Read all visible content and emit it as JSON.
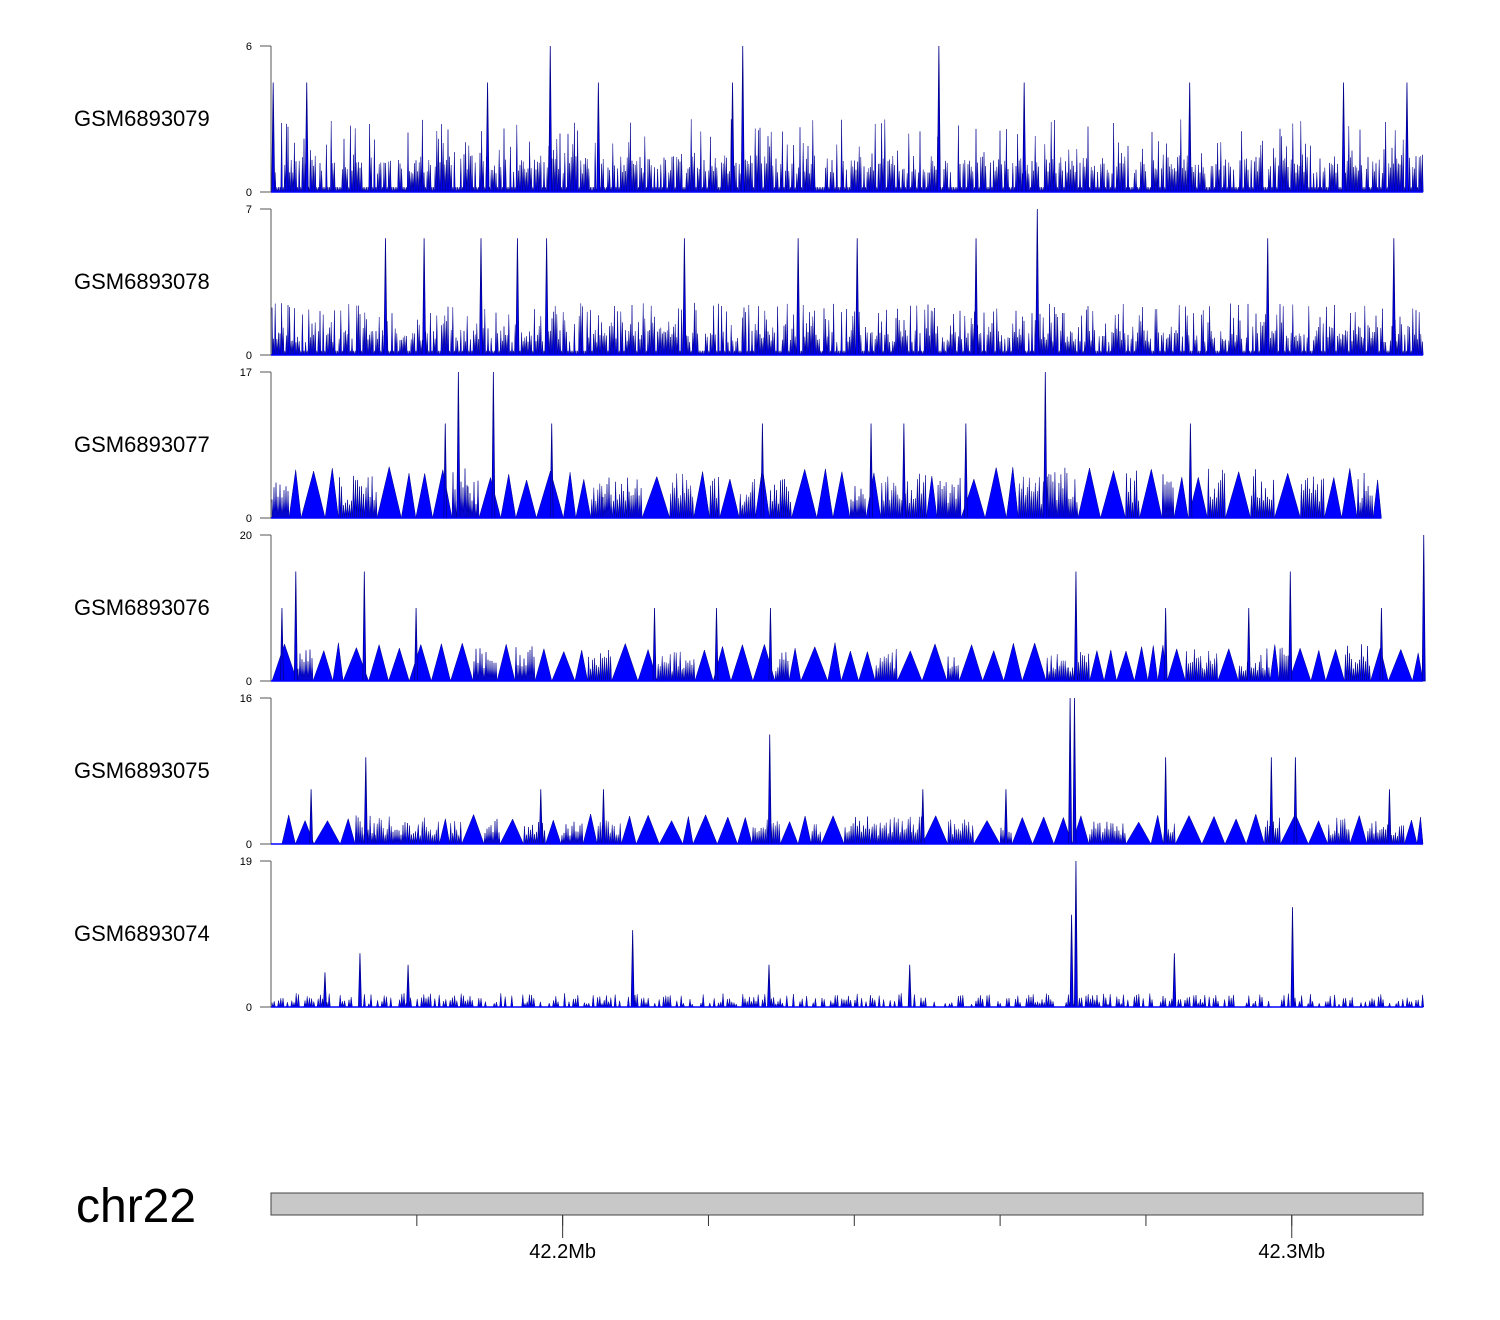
{
  "chart_data": {
    "type": "area",
    "title": "",
    "chromosome": "chr22",
    "xlim_mb": [
      42.16,
      42.318
    ],
    "x_tick_labels": [
      {
        "mb": 42.2,
        "label": "42.2Mb"
      },
      {
        "mb": 42.3,
        "label": "42.3Mb"
      }
    ],
    "x_minor_ticks_mb": [
      42.18,
      42.2,
      42.22,
      42.24,
      42.26,
      42.28,
      42.3
    ],
    "fill_color": "#0000ff",
    "line_color": "#00008b",
    "tracks": [
      {
        "name": "GSM6893079",
        "ymax": 6,
        "ymin": 0,
        "style": "dense",
        "levels": [
          1.5,
          1.5,
          1.5,
          3
        ],
        "peaks": [
          [
            42.1983,
            6
          ],
          [
            42.2247,
            6
          ],
          [
            42.2516,
            6
          ],
          [
            42.1603,
            4.5
          ],
          [
            42.1649,
            4.5
          ],
          [
            42.1897,
            4.5
          ],
          [
            42.2049,
            4.5
          ],
          [
            42.2233,
            4.5
          ],
          [
            42.2633,
            4.5
          ],
          [
            42.286,
            4.5
          ],
          [
            42.3071,
            4.5
          ],
          [
            42.3158,
            4.5
          ]
        ]
      },
      {
        "name": "GSM6893078",
        "ymax": 7,
        "ymin": 0,
        "style": "dense",
        "levels": [
          1.2,
          1.2,
          1.2,
          2.5,
          2.5
        ],
        "peaks": [
          [
            42.2651,
            7
          ],
          [
            42.1757,
            5.6
          ],
          [
            42.181,
            5.6
          ],
          [
            42.1888,
            5.6
          ],
          [
            42.1938,
            5.6
          ],
          [
            42.1978,
            5.6
          ],
          [
            42.2167,
            5.6
          ],
          [
            42.2323,
            5.6
          ],
          [
            42.2404,
            5.6
          ],
          [
            42.2567,
            5.6
          ],
          [
            42.2967,
            5.6
          ],
          [
            42.314,
            5.6
          ]
        ]
      },
      {
        "name": "GSM6893077",
        "ymax": 17,
        "ymin": 0,
        "style": "triangles",
        "base_level": 5.5,
        "end_mb": 42.3123,
        "peaks": [
          [
            42.1857,
            17
          ],
          [
            42.1905,
            17
          ],
          [
            42.2662,
            17
          ],
          [
            42.1839,
            11
          ],
          [
            42.1985,
            11
          ],
          [
            42.2274,
            11
          ],
          [
            42.2423,
            11
          ],
          [
            42.2468,
            11
          ],
          [
            42.2553,
            11
          ],
          [
            42.2861,
            11
          ]
        ]
      },
      {
        "name": "GSM6893076",
        "ymax": 20,
        "ymin": 0,
        "style": "triangles",
        "base_level": 4.8,
        "peaks": [
          [
            42.3181,
            20
          ],
          [
            42.1634,
            15
          ],
          [
            42.1728,
            15
          ],
          [
            42.2704,
            15
          ],
          [
            42.2998,
            15
          ],
          [
            42.1615,
            10
          ],
          [
            42.1799,
            10
          ],
          [
            42.2126,
            10
          ],
          [
            42.2211,
            10
          ],
          [
            42.2285,
            10
          ],
          [
            42.2827,
            10
          ],
          [
            42.2941,
            10
          ],
          [
            42.3123,
            10
          ]
        ]
      },
      {
        "name": "GSM6893075",
        "ymax": 16,
        "ymin": 0,
        "style": "triangles",
        "base_level": 3,
        "start_mb": 42.1615,
        "peaks": [
          [
            42.2696,
            16
          ],
          [
            42.2702,
            16
          ],
          [
            42.2284,
            12
          ],
          [
            42.173,
            9.5
          ],
          [
            42.2827,
            9.5
          ],
          [
            42.2972,
            9.5
          ],
          [
            42.3005,
            9.5
          ],
          [
            42.1655,
            6
          ],
          [
            42.197,
            6
          ],
          [
            42.2056,
            6
          ],
          [
            42.2494,
            6
          ],
          [
            42.2608,
            6
          ],
          [
            42.3134,
            6
          ]
        ]
      },
      {
        "name": "GSM6893074",
        "ymax": 19,
        "ymin": 0,
        "style": "low",
        "base_level": 1.2,
        "peaks": [
          [
            42.2704,
            19
          ],
          [
            42.2698,
            12
          ],
          [
            42.3001,
            13
          ],
          [
            42.2096,
            10
          ],
          [
            42.1722,
            7
          ],
          [
            42.2283,
            5.5
          ],
          [
            42.2476,
            5.5
          ],
          [
            42.2839,
            7
          ],
          [
            42.1674,
            4.5
          ],
          [
            42.1788,
            5.5
          ]
        ]
      }
    ]
  }
}
